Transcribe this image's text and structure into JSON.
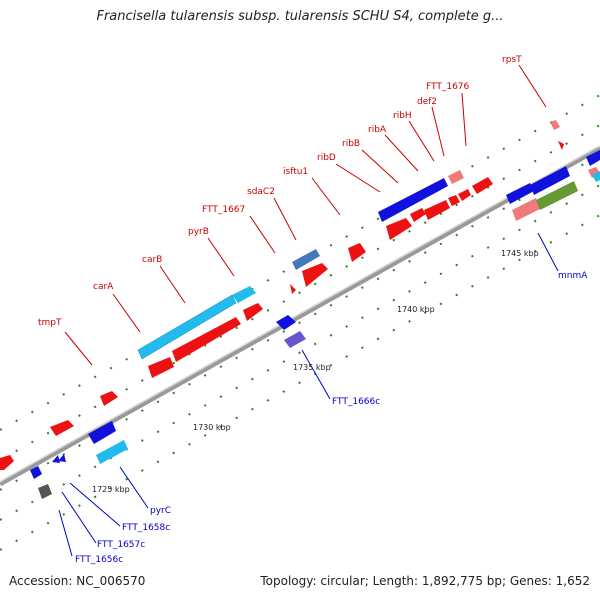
{
  "title": "Francisella tularensis subsp. tularensis SCHU S4, complete g...",
  "footer": {
    "accession": "Accession: NC_006570",
    "summary": "Topology: circular; Length: 1,892,775 bp; Genes: 1,652"
  },
  "kbp_labels": [
    "1725 kbp",
    "1730 kbp",
    "1735 kbp",
    "1740 kbp",
    "1745 kbp"
  ],
  "gene_labels_forward": [
    "tmpT",
    "carA",
    "carB",
    "pyrB",
    "FTT_1667",
    "sdaC2",
    "isftu1",
    "ribD",
    "ribB",
    "ribA",
    "ribH",
    "def2",
    "FTT_1676",
    "rpsT"
  ],
  "gene_labels_reverse": [
    "FTT_1656c",
    "FTT_1657c",
    "FTT_1658c",
    "pyrC",
    "FTT_1666c",
    "mnmA"
  ],
  "colors": {
    "forward_label": "#cc0000",
    "reverse_label": "#0000cc",
    "red_gene": "#ee1111",
    "blue_gene": "#1111dd",
    "cyan_gene": "#22bbee",
    "backbone": "#999999"
  }
}
